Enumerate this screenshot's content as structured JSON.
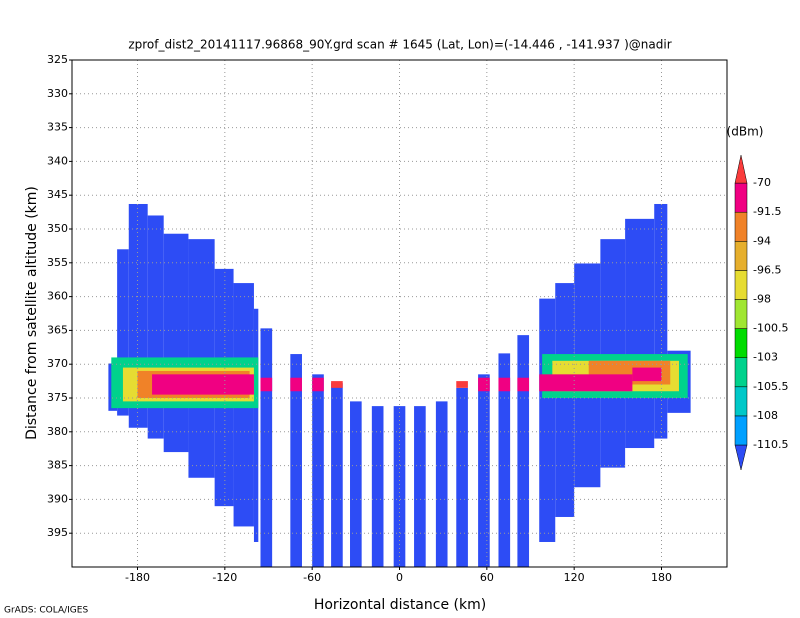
{
  "chart_data": {
    "type": "heatmap",
    "title": "zprof_dist2_20141117.96868_90Y.grd  scan # 1645  (Lat, Lon)=(-14.446 , -141.937 )@nadir",
    "x_label": "Horizontal distance (km)",
    "y_label": "Distance from satellite altitude (km)",
    "colorbar_label": "(dBm)",
    "footer": "GrADS: COLA/IGES",
    "xlim": [
      -225,
      225
    ],
    "xticks": [
      -180,
      -120,
      -60,
      0,
      60,
      120,
      180
    ],
    "ylim": [
      400,
      325
    ],
    "yticks": [
      325,
      330,
      335,
      340,
      345,
      350,
      355,
      360,
      365,
      370,
      375,
      380,
      385,
      390,
      395
    ],
    "grid": true,
    "levels": [
      -110.5,
      -108,
      -105.5,
      -103,
      -100.5,
      -98,
      -96.5,
      -94,
      -91.5,
      -70
    ],
    "colors": [
      "#2d4cf5",
      "#00a0ff",
      "#00c8c8",
      "#00d28c",
      "#00dc00",
      "#a0e632",
      "#e6dc32",
      "#e6af2d",
      "#f08228",
      "#f00082",
      "#fa3c3c"
    ],
    "cells": [
      {
        "x": [
          -200,
          -194
        ],
        "alt": [
          369.9,
          376.9
        ],
        "dbm": -115
      },
      {
        "x": [
          -194,
          -186
        ],
        "alt": [
          353,
          377.6
        ],
        "dbm": -115
      },
      {
        "x": [
          -186,
          -173
        ],
        "alt": [
          346.3,
          379.4
        ],
        "dbm": -115
      },
      {
        "x": [
          -173,
          -162
        ],
        "alt": [
          348,
          381
        ],
        "dbm": -115
      },
      {
        "x": [
          -162,
          -145
        ],
        "alt": [
          350.7,
          383
        ],
        "dbm": -115
      },
      {
        "x": [
          -145,
          -127
        ],
        "alt": [
          351.5,
          386.8
        ],
        "dbm": -115
      },
      {
        "x": [
          -127,
          -114
        ],
        "alt": [
          355.9,
          391
        ],
        "dbm": -115
      },
      {
        "x": [
          -114,
          -100
        ],
        "alt": [
          358,
          394
        ],
        "dbm": -115
      },
      {
        "x": [
          -100,
          -97
        ],
        "alt": [
          361.8,
          396.3
        ],
        "dbm": -115
      },
      {
        "x": [
          -95.5,
          -87.5
        ],
        "alt": [
          364.7,
          400
        ],
        "dbm": -115
      },
      {
        "x": [
          -75,
          -67
        ],
        "alt": [
          368.5,
          400
        ],
        "dbm": -115
      },
      {
        "x": [
          -60,
          -52
        ],
        "alt": [
          371.5,
          400
        ],
        "dbm": -115
      },
      {
        "x": [
          -47,
          -39
        ],
        "alt": [
          372.8,
          400
        ],
        "dbm": -115
      },
      {
        "x": [
          -34,
          -26
        ],
        "alt": [
          375.5,
          400
        ],
        "dbm": -115
      },
      {
        "x": [
          -19,
          -11
        ],
        "alt": [
          376.2,
          400
        ],
        "dbm": -115
      },
      {
        "x": [
          -4,
          4
        ],
        "alt": [
          376.2,
          400
        ],
        "dbm": -115
      },
      {
        "x": [
          10,
          18
        ],
        "alt": [
          376.2,
          400
        ],
        "dbm": -115
      },
      {
        "x": [
          25,
          33
        ],
        "alt": [
          375.5,
          400
        ],
        "dbm": -115
      },
      {
        "x": [
          39,
          47
        ],
        "alt": [
          373.5,
          400
        ],
        "dbm": -115
      },
      {
        "x": [
          54,
          62
        ],
        "alt": [
          371.5,
          400
        ],
        "dbm": -115
      },
      {
        "x": [
          68,
          76
        ],
        "alt": [
          368.4,
          400
        ],
        "dbm": -115
      },
      {
        "x": [
          81,
          89
        ],
        "alt": [
          365.7,
          400
        ],
        "dbm": -115
      },
      {
        "x": [
          96,
          107
        ],
        "alt": [
          360.3,
          396.3
        ],
        "dbm": -115
      },
      {
        "x": [
          107,
          120
        ],
        "alt": [
          358,
          392.6
        ],
        "dbm": -115
      },
      {
        "x": [
          120,
          138
        ],
        "alt": [
          355.1,
          388.2
        ],
        "dbm": -115
      },
      {
        "x": [
          138,
          155
        ],
        "alt": [
          351.5,
          385.3
        ],
        "dbm": -115
      },
      {
        "x": [
          155,
          175
        ],
        "alt": [
          348.5,
          382.4
        ],
        "dbm": -115
      },
      {
        "x": [
          175,
          184
        ],
        "alt": [
          346.3,
          381
        ],
        "dbm": -115
      },
      {
        "x": [
          184,
          200
        ],
        "alt": [
          368,
          377.2
        ],
        "dbm": -115
      },
      {
        "x": [
          -198,
          -97
        ],
        "alt": [
          369,
          376.5
        ],
        "dbm": -104
      },
      {
        "x": [
          -190,
          -100
        ],
        "alt": [
          370.5,
          375.5
        ],
        "dbm": -97
      },
      {
        "x": [
          -180,
          -103
        ],
        "alt": [
          371,
          375
        ],
        "dbm": -93
      },
      {
        "x": [
          -170,
          -100
        ],
        "alt": [
          371.5,
          374.5
        ],
        "dbm": -80
      },
      {
        "x": [
          -95.5,
          -87.5
        ],
        "alt": [
          372,
          374
        ],
        "dbm": -80
      },
      {
        "x": [
          -75,
          -67
        ],
        "alt": [
          372,
          374
        ],
        "dbm": -80
      },
      {
        "x": [
          -60,
          -52
        ],
        "alt": [
          372,
          374
        ],
        "dbm": -80
      },
      {
        "x": [
          -47,
          -39
        ],
        "alt": [
          372.5,
          373.5
        ],
        "dbm": -68
      },
      {
        "x": [
          39,
          47
        ],
        "alt": [
          372.5,
          373.5
        ],
        "dbm": -68
      },
      {
        "x": [
          54,
          62
        ],
        "alt": [
          372,
          374
        ],
        "dbm": -80
      },
      {
        "x": [
          68,
          76
        ],
        "alt": [
          372,
          374
        ],
        "dbm": -80
      },
      {
        "x": [
          81,
          89
        ],
        "alt": [
          372,
          374
        ],
        "dbm": -80
      },
      {
        "x": [
          98,
          198
        ],
        "alt": [
          368.5,
          375
        ],
        "dbm": -104
      },
      {
        "x": [
          105,
          192
        ],
        "alt": [
          369.5,
          374
        ],
        "dbm": -97
      },
      {
        "x": [
          130,
          186
        ],
        "alt": [
          369.5,
          373
        ],
        "dbm": -93
      },
      {
        "x": [
          96,
          160
        ],
        "alt": [
          371.5,
          374
        ],
        "dbm": -80
      },
      {
        "x": [
          160,
          180
        ],
        "alt": [
          370.5,
          372.5
        ],
        "dbm": -80
      }
    ]
  }
}
